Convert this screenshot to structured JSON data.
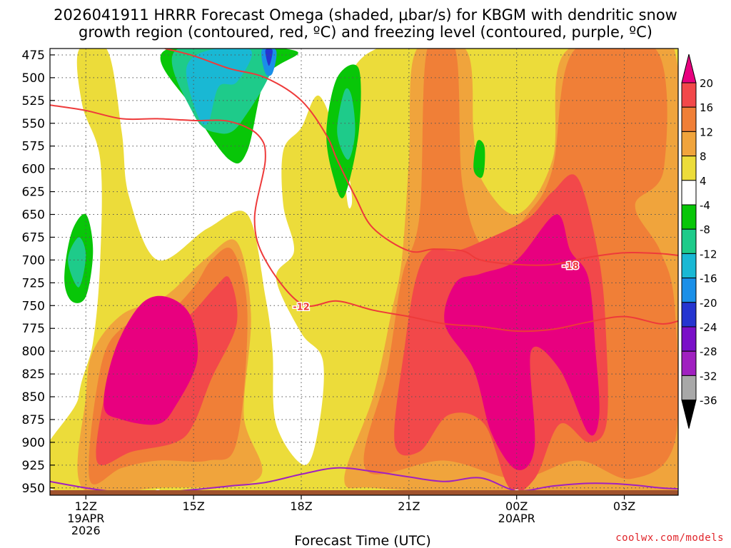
{
  "title": {
    "line1": "2026041911 HRRR Forecast Omega (shaded, μbar/s) for KBGM with dendritic snow",
    "line2": "growth region (contoured, red, ºC) and freezing level (contoured, purple, ºC)"
  },
  "xlabel": "Forecast Time (UTC)",
  "credit": "coolwx.com/models",
  "chart_data": {
    "type": "heatmap",
    "x": {
      "unit": "forecast hour from 2026-04-19 10Z",
      "ticks": [
        {
          "hour": 2,
          "label": "12Z",
          "sub": [
            "19APR",
            "2026"
          ]
        },
        {
          "hour": 5,
          "label": "15Z",
          "sub": []
        },
        {
          "hour": 8,
          "label": "18Z",
          "sub": []
        },
        {
          "hour": 11,
          "label": "21Z",
          "sub": []
        },
        {
          "hour": 14,
          "label": "00Z",
          "sub": [
            "20APR"
          ]
        },
        {
          "hour": 17,
          "label": "03Z",
          "sub": []
        }
      ],
      "range": [
        1,
        18.5
      ]
    },
    "y": {
      "unit": "mb",
      "ticks": [
        475,
        500,
        525,
        550,
        575,
        600,
        625,
        650,
        675,
        700,
        725,
        750,
        775,
        800,
        825,
        850,
        875,
        900,
        925,
        950
      ],
      "range": [
        468,
        958
      ],
      "inverted": true
    },
    "colorbar": {
      "levels": [
        20,
        16,
        12,
        8,
        4,
        -4,
        -8,
        -12,
        -16,
        -20,
        -24,
        -28,
        -32,
        -36
      ],
      "bins": [
        {
          "label": ">20",
          "color": "#e8007f"
        },
        {
          "label": "16 to 20",
          "color": "#f2484a"
        },
        {
          "label": "12 to 16",
          "color": "#f07f37"
        },
        {
          "label": "8 to 12",
          "color": "#f0a43c"
        },
        {
          "label": "4 to 8",
          "color": "#ecdc3a"
        },
        {
          "label": "-4 to 4",
          "color": "#ffffff"
        },
        {
          "label": "-8 to -4",
          "color": "#08c608"
        },
        {
          "label": "-12 to -8",
          "color": "#1ecb8a"
        },
        {
          "label": "-16 to -12",
          "color": "#19b8d4"
        },
        {
          "label": "-20 to -16",
          "color": "#1a8fe8"
        },
        {
          "label": "-24 to -20",
          "color": "#2535d0"
        },
        {
          "label": "-28 to -24",
          "color": "#7a10c8"
        },
        {
          "label": "-32 to -28",
          "color": "#a020c0"
        },
        {
          "label": "-36 to -32",
          "color": "#a8a8a8"
        },
        {
          "label": "<-36",
          "color": "#000000"
        }
      ]
    },
    "contours": [
      {
        "name": "-12",
        "color": "#ee3a3a",
        "label_at": {
          "hour": 8,
          "p": 751
        },
        "points": [
          [
            1,
            530
          ],
          [
            2,
            536
          ],
          [
            3,
            545
          ],
          [
            4,
            545
          ],
          [
            5,
            547
          ],
          [
            6,
            548
          ],
          [
            6.8,
            563
          ],
          [
            7,
            590
          ],
          [
            6.7,
            655
          ],
          [
            7,
            700
          ],
          [
            8,
            748
          ],
          [
            9,
            745
          ],
          [
            10,
            755
          ],
          [
            11,
            762
          ],
          [
            12,
            770
          ],
          [
            13,
            773
          ],
          [
            14,
            778
          ],
          [
            15,
            776
          ],
          [
            16,
            768
          ],
          [
            17,
            762
          ],
          [
            18,
            770
          ],
          [
            18.5,
            767
          ]
        ]
      },
      {
        "name": "-18",
        "color": "#ee3a3a",
        "label_at": {
          "hour": 15.5,
          "p": 706
        },
        "points": [
          [
            4.2,
            468
          ],
          [
            5,
            476
          ],
          [
            6,
            490
          ],
          [
            7,
            500
          ],
          [
            8,
            525
          ],
          [
            8.7,
            563
          ],
          [
            9,
            590
          ],
          [
            9.5,
            630
          ],
          [
            10,
            665
          ],
          [
            11,
            690
          ],
          [
            11.7,
            688
          ],
          [
            12.5,
            690
          ],
          [
            13,
            700
          ],
          [
            14,
            705
          ],
          [
            15,
            705
          ],
          [
            16,
            697
          ],
          [
            17,
            692
          ],
          [
            18,
            693
          ],
          [
            18.5,
            695
          ]
        ]
      },
      {
        "name": "0",
        "color": "#a020c0",
        "label_at": [
          {
            "hour": 4,
            "p": 957
          },
          {
            "hour": 14,
            "p": 957
          }
        ],
        "points": [
          [
            1,
            943
          ],
          [
            2,
            950
          ],
          [
            3,
            955
          ],
          [
            4,
            955
          ],
          [
            5,
            952
          ],
          [
            6,
            948
          ],
          [
            7,
            944
          ],
          [
            8,
            935
          ],
          [
            9,
            928
          ],
          [
            10,
            932
          ],
          [
            11,
            938
          ],
          [
            12,
            943
          ],
          [
            13,
            939
          ],
          [
            14,
            953
          ],
          [
            15,
            948
          ],
          [
            16,
            945
          ],
          [
            17,
            946
          ],
          [
            18,
            950
          ],
          [
            18.5,
            951
          ]
        ]
      }
    ],
    "omega_regions": [
      {
        "level": 4,
        "points": [
          [
            1.6,
            958
          ],
          [
            1.8,
            850
          ],
          [
            2.2,
            790
          ],
          [
            2.4,
            700
          ],
          [
            2.4,
            590
          ],
          [
            1.9,
            530
          ],
          [
            1.8,
            470
          ],
          [
            2.6,
            470
          ],
          [
            3,
            560
          ],
          [
            3.2,
            630
          ],
          [
            4,
            700
          ],
          [
            5.4,
            665
          ],
          [
            6.5,
            650
          ],
          [
            7,
            740
          ],
          [
            7.2,
            800
          ],
          [
            7.3,
            880
          ],
          [
            8.1,
            925
          ],
          [
            8.5,
            880
          ],
          [
            8.6,
            810
          ],
          [
            8,
            780
          ],
          [
            7.3,
            720
          ],
          [
            7.8,
            690
          ],
          [
            7.5,
            640
          ],
          [
            7.5,
            580
          ],
          [
            8,
            555
          ],
          [
            8.5,
            520
          ],
          [
            9.1,
            580
          ],
          [
            9.4,
            640
          ],
          [
            10,
            470
          ],
          [
            18.5,
            470
          ],
          [
            18.5,
            958
          ],
          [
            15,
            958
          ]
        ]
      },
      {
        "level": 8,
        "points": [
          [
            1.9,
            950
          ],
          [
            2,
            850
          ],
          [
            2.2,
            800
          ],
          [
            3,
            760
          ],
          [
            4.2,
            740
          ],
          [
            5.3,
            700
          ],
          [
            6.2,
            680
          ],
          [
            6.6,
            760
          ],
          [
            6.4,
            870
          ],
          [
            6.8,
            940
          ],
          [
            4,
            950
          ]
        ]
      },
      {
        "level": 8,
        "points": [
          [
            9.2,
            940
          ],
          [
            10,
            850
          ],
          [
            10.5,
            760
          ],
          [
            10.8,
            700
          ],
          [
            11,
            590
          ],
          [
            11.2,
            470
          ],
          [
            12.6,
            470
          ],
          [
            12.8,
            560
          ],
          [
            13,
            610
          ],
          [
            14,
            650
          ],
          [
            15,
            590
          ],
          [
            15.4,
            470
          ],
          [
            18.4,
            470
          ],
          [
            18.4,
            958
          ],
          [
            14,
            958
          ],
          [
            12.5,
            955
          ],
          [
            10,
            950
          ]
        ]
      },
      {
        "level": 12,
        "points": [
          [
            2.1,
            940
          ],
          [
            2.4,
            820
          ],
          [
            3,
            775
          ],
          [
            4.2,
            760
          ],
          [
            5,
            730
          ],
          [
            5.5,
            700
          ],
          [
            6.1,
            690
          ],
          [
            6.5,
            760
          ],
          [
            6.2,
            900
          ],
          [
            5.4,
            920
          ],
          [
            4,
            920
          ],
          [
            3,
            928
          ]
        ]
      },
      {
        "level": 12,
        "points": [
          [
            9.8,
            930
          ],
          [
            10.4,
            820
          ],
          [
            10.8,
            720
          ],
          [
            11.3,
            650
          ],
          [
            11.5,
            470
          ],
          [
            12.3,
            470
          ],
          [
            12.5,
            620
          ],
          [
            13.2,
            690
          ],
          [
            14.3,
            650
          ],
          [
            15,
            600
          ],
          [
            15.6,
            470
          ],
          [
            17.9,
            470
          ],
          [
            18.1,
            600
          ],
          [
            17.3,
            640
          ],
          [
            18,
            690
          ],
          [
            18.4,
            750
          ],
          [
            18.4,
            900
          ],
          [
            17.2,
            940
          ],
          [
            15.7,
            920
          ],
          [
            14,
            940
          ],
          [
            12,
            920
          ]
        ]
      },
      {
        "level": 16,
        "points": [
          [
            2.3,
            920
          ],
          [
            2.7,
            820
          ],
          [
            3.2,
            790
          ],
          [
            4.2,
            775
          ],
          [
            4.9,
            760
          ],
          [
            5.6,
            730
          ],
          [
            6,
            720
          ],
          [
            6.2,
            770
          ],
          [
            5.5,
            830
          ],
          [
            5,
            880
          ],
          [
            4.5,
            900
          ],
          [
            3.3,
            910
          ]
        ]
      },
      {
        "level": 16,
        "points": [
          [
            10.6,
            900
          ],
          [
            10.9,
            790
          ],
          [
            11.2,
            720
          ],
          [
            11.6,
            690
          ],
          [
            12.3,
            690
          ],
          [
            13,
            680
          ],
          [
            14.3,
            655
          ],
          [
            15,
            625
          ],
          [
            15.7,
            610
          ],
          [
            16.3,
            700
          ],
          [
            16.5,
            790
          ],
          [
            16.5,
            880
          ],
          [
            16,
            900
          ],
          [
            15.2,
            880
          ],
          [
            14.5,
            940
          ],
          [
            13.8,
            950
          ],
          [
            13.1,
            880
          ],
          [
            12.1,
            870
          ],
          [
            11.3,
            910
          ]
        ]
      },
      {
        "level": 20,
        "points": [
          [
            2.5,
            860
          ],
          [
            2.8,
            800
          ],
          [
            3.5,
            750
          ],
          [
            4.2,
            740
          ],
          [
            4.9,
            760
          ],
          [
            5.1,
            810
          ],
          [
            4.5,
            860
          ],
          [
            4,
            880
          ],
          [
            3,
            875
          ]
        ]
      },
      {
        "level": 20,
        "points": [
          [
            12,
            770
          ],
          [
            12.3,
            725
          ],
          [
            13,
            715
          ],
          [
            14,
            700
          ],
          [
            15.1,
            650
          ],
          [
            15.5,
            690
          ],
          [
            16,
            720
          ],
          [
            16.2,
            800
          ],
          [
            16.3,
            870
          ],
          [
            16,
            890
          ],
          [
            15.2,
            820
          ],
          [
            14.4,
            800
          ],
          [
            14.5,
            905
          ],
          [
            14,
            930
          ],
          [
            13.3,
            890
          ],
          [
            12.8,
            820
          ]
        ]
      },
      {
        "level": -4,
        "points": [
          [
            1.4,
            720
          ],
          [
            1.6,
            670
          ],
          [
            2,
            650
          ],
          [
            2.2,
            690
          ],
          [
            2,
            740
          ],
          [
            1.6,
            745
          ]
        ]
      },
      {
        "level": -4,
        "points": [
          [
            4.2,
            470
          ],
          [
            5,
            535
          ],
          [
            6,
            590
          ],
          [
            6.5,
            580
          ],
          [
            7,
            500
          ],
          [
            7.8,
            470
          ]
        ]
      },
      {
        "level": -4,
        "points": [
          [
            8.7,
            560
          ],
          [
            9,
            500
          ],
          [
            9.6,
            490
          ],
          [
            9.6,
            560
          ],
          [
            9.2,
            630
          ],
          [
            8.9,
            610
          ]
        ]
      },
      {
        "level": -4,
        "points": [
          [
            12.8,
            600
          ],
          [
            12.9,
            570
          ],
          [
            13.1,
            575
          ],
          [
            13.1,
            600
          ],
          [
            13,
            610
          ]
        ]
      },
      {
        "level": -8,
        "points": [
          [
            1.5,
            700
          ],
          [
            1.8,
            675
          ],
          [
            2,
            695
          ],
          [
            1.8,
            730
          ]
        ]
      },
      {
        "level": -8,
        "points": [
          [
            4.5,
            470
          ],
          [
            5,
            540
          ],
          [
            5.6,
            560
          ],
          [
            6.3,
            550
          ],
          [
            7.2,
            470
          ]
        ]
      },
      {
        "level": -8,
        "points": [
          [
            9,
            560
          ],
          [
            9.2,
            515
          ],
          [
            9.4,
            520
          ],
          [
            9.5,
            560
          ],
          [
            9.3,
            590
          ]
        ]
      },
      {
        "level": -12,
        "points": [
          [
            4.8,
            490
          ],
          [
            5.1,
            540
          ],
          [
            5.4,
            550
          ],
          [
            5.7,
            510
          ],
          [
            6.2,
            505
          ],
          [
            6.6,
            470
          ],
          [
            5.4,
            470
          ]
        ]
      },
      {
        "level": -16,
        "points": [
          [
            6.9,
            470
          ],
          [
            7.3,
            470
          ],
          [
            7.2,
            495
          ],
          [
            7,
            495
          ]
        ]
      },
      {
        "level": -20,
        "points": [
          [
            7,
            470
          ],
          [
            7.2,
            470
          ],
          [
            7.1,
            487
          ]
        ]
      }
    ]
  }
}
